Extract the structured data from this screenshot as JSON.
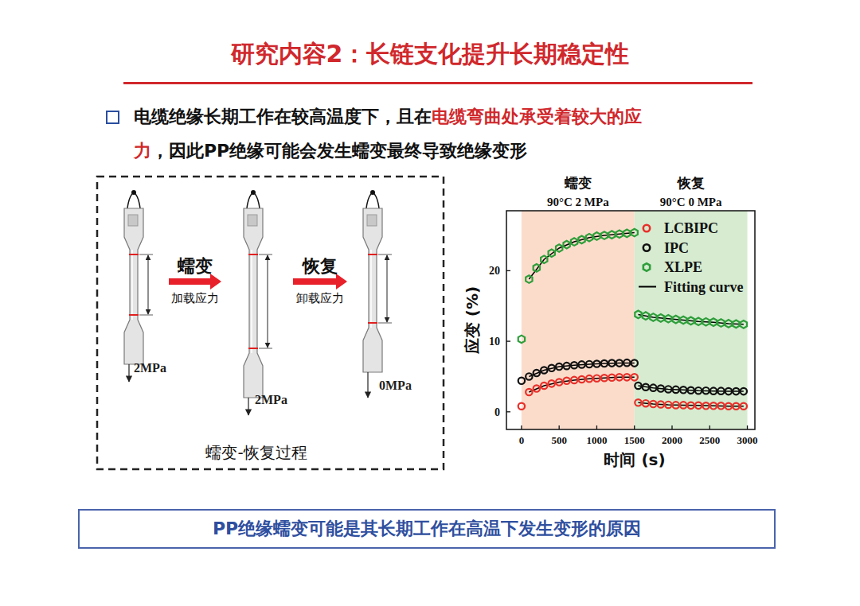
{
  "slide": {
    "title": "研究内容2：长链支化提升长期稳定性",
    "bullet_lines": [
      [
        {
          "text": "电缆绝缘长期工作在较高温度下，且在",
          "highlight": false
        },
        {
          "text": "电缆弯曲处承受着较大的应",
          "highlight": true
        }
      ],
      [
        {
          "text": "力",
          "highlight": true
        },
        {
          "text": "，因此PP绝缘可能会发生蠕变最终导致绝缘变形",
          "highlight": false
        }
      ]
    ],
    "diagram": {
      "steps": [
        {
          "label": "蠕变",
          "sublabel": "加载应力"
        },
        {
          "label": "恢复",
          "sublabel": "卸载应力"
        }
      ],
      "specimens": [
        {
          "stress_label": "2MPa"
        },
        {
          "stress_label": "2MPa"
        },
        {
          "stress_label": "0MPa"
        }
      ],
      "caption": "蠕变-恢复过程"
    },
    "conclusion": "PP绝缘蠕变可能是其长期工作在高温下发生变形的原因"
  },
  "chart_data": {
    "type": "scatter",
    "x_label": "时间 (s)",
    "y_label": "应变 (%)",
    "xlim": [
      -200,
      3100
    ],
    "ylim": [
      -2.5,
      28.5
    ],
    "xticks": [
      0,
      500,
      1000,
      1500,
      2000,
      2500,
      3000
    ],
    "yticks": [
      0,
      10,
      20
    ],
    "grid": false,
    "legend": "top-right",
    "regions": [
      {
        "label": "蠕变",
        "condition": "90°C 2 MPa",
        "x0": 0,
        "x1": 1500
      },
      {
        "label": "恢复",
        "condition": "90°C 0 MPa",
        "x0": 1500,
        "x1": 3000
      }
    ],
    "series": [
      {
        "name": "LCBIPC",
        "color": "#e8302a",
        "marker": "circle",
        "type": "scatter",
        "x": [
          0,
          100,
          200,
          300,
          400,
          500,
          600,
          700,
          800,
          900,
          1000,
          1100,
          1200,
          1300,
          1400,
          1500,
          1550,
          1650,
          1750,
          1850,
          1950,
          2050,
          2150,
          2250,
          2350,
          2450,
          2550,
          2650,
          2750,
          2850,
          2950
        ],
        "values": [
          0.8,
          2.8,
          3.3,
          3.7,
          4.0,
          4.2,
          4.4,
          4.5,
          4.6,
          4.7,
          4.75,
          4.8,
          4.85,
          4.9,
          4.9,
          4.9,
          1.3,
          1.2,
          1.1,
          1.05,
          1.0,
          0.95,
          0.95,
          0.9,
          0.9,
          0.85,
          0.85,
          0.85,
          0.8,
          0.8,
          0.8
        ]
      },
      {
        "name": "IPC",
        "color": "#111111",
        "marker": "circle",
        "type": "scatter",
        "x": [
          0,
          100,
          200,
          300,
          400,
          500,
          600,
          700,
          800,
          900,
          1000,
          1100,
          1200,
          1300,
          1400,
          1500,
          1550,
          1650,
          1750,
          1850,
          1950,
          2050,
          2150,
          2250,
          2350,
          2450,
          2550,
          2650,
          2750,
          2850,
          2950
        ],
        "values": [
          4.4,
          5.0,
          5.5,
          5.9,
          6.2,
          6.4,
          6.5,
          6.6,
          6.7,
          6.75,
          6.8,
          6.85,
          6.9,
          6.9,
          6.95,
          6.9,
          3.7,
          3.5,
          3.4,
          3.3,
          3.2,
          3.15,
          3.1,
          3.05,
          3.0,
          3.0,
          2.95,
          2.95,
          2.9,
          2.9,
          2.9
        ]
      },
      {
        "name": "XLPE",
        "color": "#2e9e3a",
        "marker": "hexagon",
        "type": "scatter",
        "x": [
          0,
          100,
          200,
          300,
          400,
          500,
          600,
          700,
          800,
          900,
          1000,
          1100,
          1200,
          1300,
          1400,
          1500,
          1550,
          1650,
          1750,
          1850,
          1950,
          2050,
          2150,
          2250,
          2350,
          2450,
          2550,
          2650,
          2750,
          2850,
          2950
        ],
        "values": [
          10.3,
          18.8,
          20.4,
          21.6,
          22.5,
          23.2,
          23.7,
          24.1,
          24.4,
          24.7,
          24.9,
          25.0,
          25.1,
          25.2,
          25.3,
          25.4,
          13.8,
          13.6,
          13.4,
          13.3,
          13.2,
          13.1,
          13.0,
          12.9,
          12.8,
          12.75,
          12.7,
          12.6,
          12.5,
          12.45,
          12.4
        ]
      },
      {
        "name": "Fitting curve",
        "color": "#000000",
        "type": "line",
        "line_style": "solid",
        "x": [
          100,
          300,
          500,
          700,
          900,
          1100,
          1300,
          1500,
          null,
          1550,
          1750,
          1950,
          2150,
          2350,
          2550,
          2750,
          2950,
          null,
          100,
          300,
          500,
          700,
          900,
          1100,
          1300,
          1500,
          null,
          1550,
          1750,
          1950,
          2150,
          2350,
          2550,
          2750,
          2950,
          null,
          100,
          300,
          500,
          700,
          900,
          1100,
          1300,
          1500,
          null,
          1550,
          1750,
          1950,
          2150,
          2350,
          2550,
          2750,
          2950
        ],
        "values": [
          2.8,
          3.7,
          4.2,
          4.5,
          4.7,
          4.8,
          4.9,
          4.9,
          null,
          1.3,
          1.1,
          1.0,
          0.95,
          0.9,
          0.85,
          0.8,
          0.8,
          null,
          5.0,
          5.9,
          6.4,
          6.6,
          6.75,
          6.85,
          6.9,
          6.9,
          null,
          3.7,
          3.4,
          3.2,
          3.1,
          3.0,
          2.95,
          2.9,
          2.9,
          null,
          18.8,
          21.6,
          23.2,
          24.1,
          24.7,
          25.0,
          25.2,
          25.4,
          null,
          13.8,
          13.4,
          13.2,
          13.0,
          12.8,
          12.7,
          12.5,
          12.4
        ]
      }
    ]
  }
}
